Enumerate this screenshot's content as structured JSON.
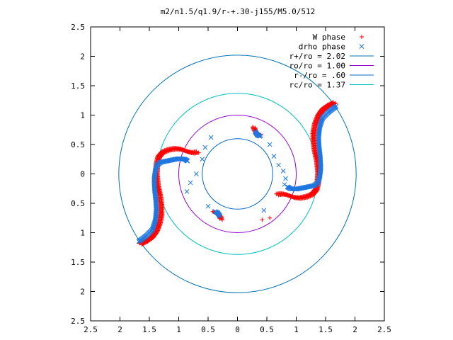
{
  "chart_data": {
    "type": "scatter",
    "title": "m2/n1.5/q1.9/r-+.30-j155/M5.0/512",
    "xlim": [
      -2.5,
      2.5
    ],
    "ylim": [
      -2.5,
      2.5
    ],
    "xticks": [
      -2.5,
      -2,
      -1.5,
      -1,
      -0.5,
      0,
      0.5,
      1,
      1.5,
      2,
      2.5
    ],
    "yticks": [
      -2.5,
      -2,
      -1.5,
      -1,
      -0.5,
      0,
      0.5,
      1,
      1.5,
      2,
      2.5
    ],
    "xtick_labels": [
      "2.5",
      "2",
      "1.5",
      "1",
      "0.5",
      "0",
      "0.5",
      "1",
      "1.5",
      "2",
      "2.5"
    ],
    "ytick_labels": [
      "2.5",
      "2",
      "1.5",
      "1",
      "0.5",
      "0",
      "0.5",
      "1",
      "1.5",
      "2",
      "2.5"
    ],
    "legend_position": "top-right",
    "grid": false,
    "circles": [
      {
        "label": "r+/ro = 2.02",
        "radius": 2.02,
        "color": "#0072b2"
      },
      {
        "label": "ro/ro = 1.00",
        "radius": 1.0,
        "color": "#9400d3"
      },
      {
        "label": "r-/ro = .60",
        "radius": 0.6,
        "color": "#0066cc"
      },
      {
        "label": "rc/ro = 1.37",
        "radius": 1.37,
        "color": "#00c0c0"
      }
    ],
    "series": [
      {
        "name": "W phase",
        "marker": "plus",
        "color": "#ff0000",
        "curves": [
          [
            [
              -1.65,
              -1.2
            ],
            [
              -1.55,
              -1.15
            ],
            [
              -1.45,
              -1.08
            ],
            [
              -1.38,
              -0.98
            ],
            [
              -1.33,
              -0.85
            ],
            [
              -1.3,
              -0.7
            ],
            [
              -1.3,
              -0.55
            ],
            [
              -1.32,
              -0.38
            ],
            [
              -1.36,
              -0.2
            ],
            [
              -1.38,
              0.0
            ],
            [
              -1.37,
              0.15
            ],
            [
              -1.34,
              0.28
            ],
            [
              -1.27,
              0.36
            ],
            [
              -1.17,
              0.4
            ],
            [
              -1.06,
              0.42
            ],
            [
              -0.96,
              0.41
            ],
            [
              -0.88,
              0.38
            ],
            [
              -0.82,
              0.36
            ],
            [
              -0.75,
              0.35
            ],
            [
              -0.68,
              0.36
            ]
          ],
          [
            [
              0.28,
              0.78
            ],
            [
              0.3,
              0.72
            ],
            [
              0.33,
              0.68
            ],
            [
              0.38,
              0.66
            ]
          ],
          [
            [
              -0.28,
              -0.78
            ],
            [
              -0.3,
              -0.72
            ],
            [
              -0.35,
              -0.68
            ],
            [
              -0.4,
              -0.66
            ]
          ],
          [
            [
              1.65,
              1.2
            ],
            [
              1.55,
              1.15
            ],
            [
              1.45,
              1.08
            ],
            [
              1.38,
              0.98
            ],
            [
              1.33,
              0.85
            ],
            [
              1.3,
              0.7
            ],
            [
              1.3,
              0.55
            ],
            [
              1.32,
              0.38
            ],
            [
              1.36,
              0.2
            ],
            [
              1.38,
              0.0
            ],
            [
              1.37,
              -0.15
            ],
            [
              1.34,
              -0.28
            ],
            [
              1.27,
              -0.36
            ],
            [
              1.17,
              -0.4
            ],
            [
              1.06,
              -0.42
            ],
            [
              0.96,
              -0.41
            ],
            [
              0.88,
              -0.38
            ],
            [
              0.82,
              -0.36
            ],
            [
              0.75,
              -0.35
            ],
            [
              0.68,
              -0.36
            ]
          ]
        ],
        "points": [
          [
            0.42,
            -0.78
          ],
          [
            0.55,
            -0.75
          ],
          [
            0.3,
            0.78
          ]
        ]
      },
      {
        "name": "drho phase",
        "marker": "cross",
        "color": "#1f77e0",
        "curves": [
          [
            [
              -1.68,
              -1.15
            ],
            [
              -1.55,
              -1.05
            ],
            [
              -1.45,
              -0.95
            ],
            [
              -1.4,
              -0.8
            ],
            [
              -1.38,
              -0.62
            ],
            [
              -1.39,
              -0.45
            ],
            [
              -1.41,
              -0.28
            ],
            [
              -1.42,
              -0.1
            ],
            [
              -1.4,
              0.05
            ],
            [
              -1.37,
              0.15
            ],
            [
              -1.3,
              0.2
            ],
            [
              -1.2,
              0.22
            ],
            [
              -1.1,
              0.24
            ],
            [
              -1.0,
              0.26
            ],
            [
              -0.9,
              0.25
            ],
            [
              -0.85,
              0.22
            ]
          ],
          [
            [
              0.3,
              0.72
            ],
            [
              0.34,
              0.66
            ],
            [
              0.38,
              0.64
            ]
          ],
          [
            [
              -0.3,
              -0.72
            ],
            [
              -0.34,
              -0.66
            ],
            [
              -0.38,
              -0.64
            ]
          ],
          [
            [
              1.68,
              1.15
            ],
            [
              1.55,
              1.05
            ],
            [
              1.45,
              0.95
            ],
            [
              1.4,
              0.8
            ],
            [
              1.38,
              0.62
            ],
            [
              1.39,
              0.45
            ],
            [
              1.41,
              0.28
            ],
            [
              1.42,
              0.1
            ],
            [
              1.4,
              -0.05
            ],
            [
              1.37,
              -0.15
            ],
            [
              1.3,
              -0.2
            ],
            [
              1.2,
              -0.22
            ],
            [
              1.1,
              -0.24
            ],
            [
              1.0,
              -0.26
            ],
            [
              0.9,
              -0.25
            ],
            [
              0.85,
              -0.22
            ]
          ]
        ],
        "points": [
          [
            0.4,
            0.65
          ],
          [
            0.55,
            0.5
          ],
          [
            0.62,
            0.3
          ],
          [
            0.7,
            0.15
          ],
          [
            0.78,
            0.05
          ],
          [
            0.82,
            -0.08
          ],
          [
            0.8,
            -0.18
          ],
          [
            0.45,
            -0.62
          ],
          [
            -0.45,
            0.62
          ],
          [
            -0.55,
            0.45
          ],
          [
            -0.6,
            0.25
          ],
          [
            -0.7,
            0.0
          ],
          [
            -0.8,
            -0.15
          ],
          [
            -0.86,
            -0.3
          ],
          [
            -0.5,
            -0.55
          ]
        ]
      }
    ]
  }
}
